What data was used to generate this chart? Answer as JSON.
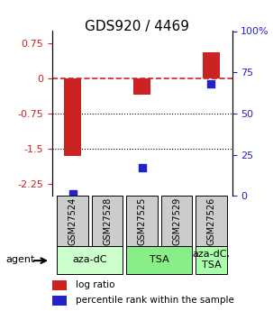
{
  "title": "GDS920 / 4469",
  "samples": [
    "GSM27524",
    "GSM27528",
    "GSM27525",
    "GSM27529",
    "GSM27526"
  ],
  "log_ratios": [
    -1.65,
    0.0,
    -0.35,
    0.0,
    0.55
  ],
  "percentile_ranks": [
    1.5,
    0.0,
    17.0,
    0.0,
    68.0
  ],
  "agent_spans": [
    [
      0,
      1,
      "aza-dC",
      "#ccffcc"
    ],
    [
      2,
      3,
      "TSA",
      "#88ee88"
    ],
    [
      4,
      4,
      "aza-dC,\nTSA",
      "#aaffaa"
    ]
  ],
  "ylim_left": [
    -2.5,
    1.0
  ],
  "ylim_right": [
    0,
    100
  ],
  "yticks_left": [
    -2.25,
    -1.5,
    -0.75,
    0,
    0.75
  ],
  "ytick_labels_left": [
    "-2.25",
    "-1.5",
    "-0.75",
    "0",
    "0.75"
  ],
  "yticks_right": [
    0,
    25,
    50,
    75,
    100
  ],
  "ytick_labels_right": [
    "0",
    "25",
    "50",
    "75",
    "100%"
  ],
  "hlines": [
    -0.75,
    -1.5
  ],
  "zero_line": 0.0,
  "bar_color": "#cc2222",
  "dot_color": "#2222cc",
  "bar_width": 0.5,
  "dot_size": 40,
  "title_fontsize": 11,
  "tick_fontsize": 8,
  "legend_fontsize": 7.5,
  "agent_label_fontsize": 8,
  "sample_fontsize": 7
}
